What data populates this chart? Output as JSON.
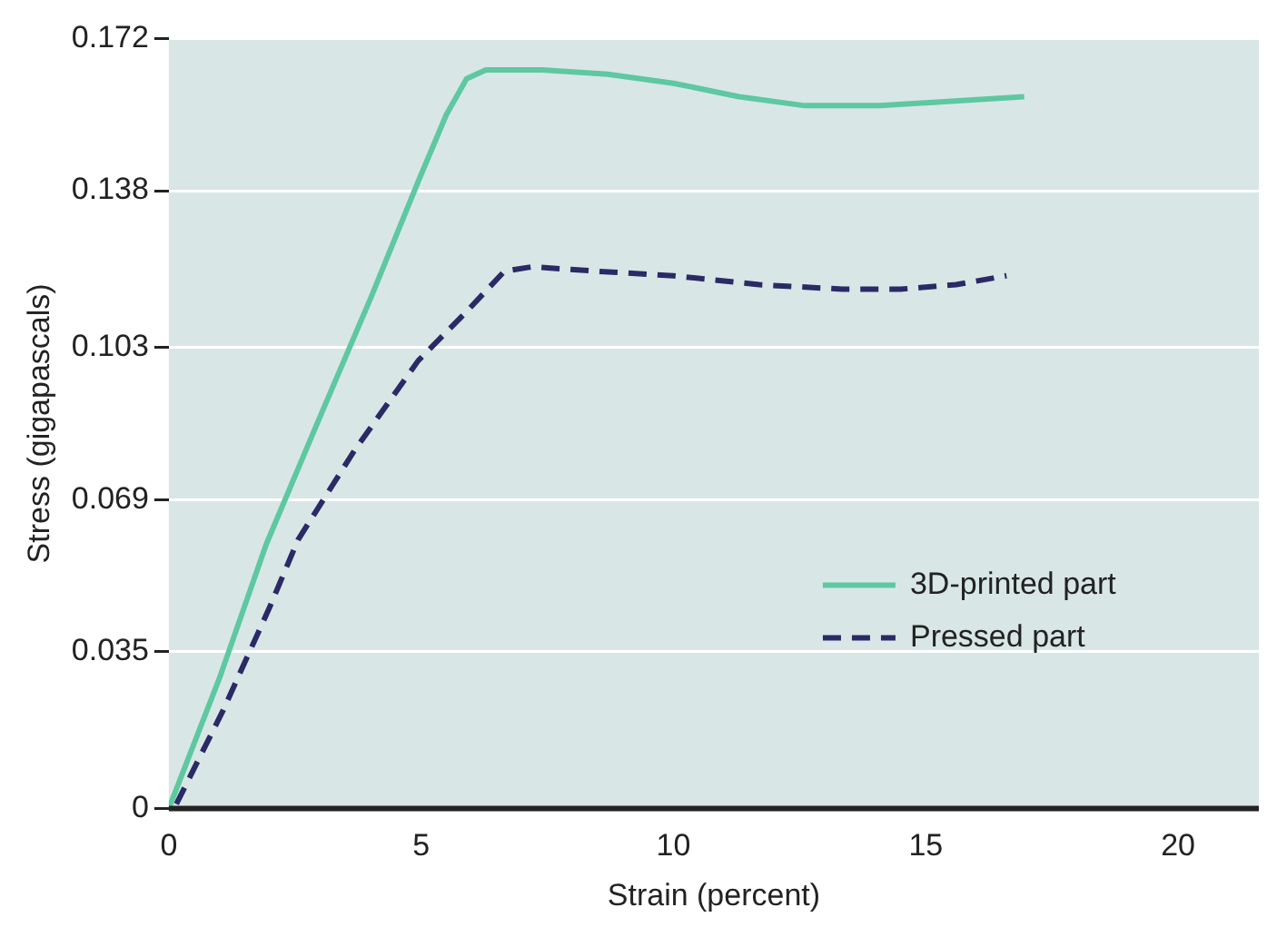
{
  "chart_data": {
    "type": "line",
    "xlabel": "Strain (percent)",
    "ylabel": "Stress (gigapascals)",
    "xlim": [
      0,
      21.6
    ],
    "xticks": [
      0,
      5,
      10,
      15,
      20
    ],
    "ylim": [
      0,
      0.172
    ],
    "yticks": [
      0,
      0.035,
      0.069,
      0.103,
      0.138,
      0.172
    ],
    "grid": "y",
    "legend": "right",
    "marker": "none",
    "series": [
      {
        "name": "3D-printed part",
        "color": "#5ec8a0",
        "line_style": "solid",
        "x": [
          0,
          1,
          1.93,
          2.94,
          4,
          4.94,
          5.5,
          5.9,
          6.28,
          7.4,
          8.7,
          10,
          11.3,
          12.6,
          14.1,
          15.5,
          16.95
        ],
        "values": [
          0,
          0.029,
          0.059,
          0.086,
          0.114,
          0.14,
          0.155,
          0.163,
          0.165,
          0.165,
          0.164,
          0.162,
          0.159,
          0.157,
          0.157,
          0.158,
          0.159
        ]
      },
      {
        "name": "Pressed part",
        "color": "#2a2a66",
        "line_style": "dashed",
        "x": [
          0.15,
          1.08,
          2,
          2.56,
          3.68,
          4.94,
          5.9,
          6.65,
          7.2,
          8.5,
          10,
          11.7,
          13.35,
          14.5,
          15.6,
          16.6
        ],
        "values": [
          0.001,
          0.022,
          0.045,
          0.06,
          0.08,
          0.1,
          0.111,
          0.12,
          0.121,
          0.12,
          0.119,
          0.117,
          0.116,
          0.116,
          0.117,
          0.119
        ]
      }
    ]
  }
}
